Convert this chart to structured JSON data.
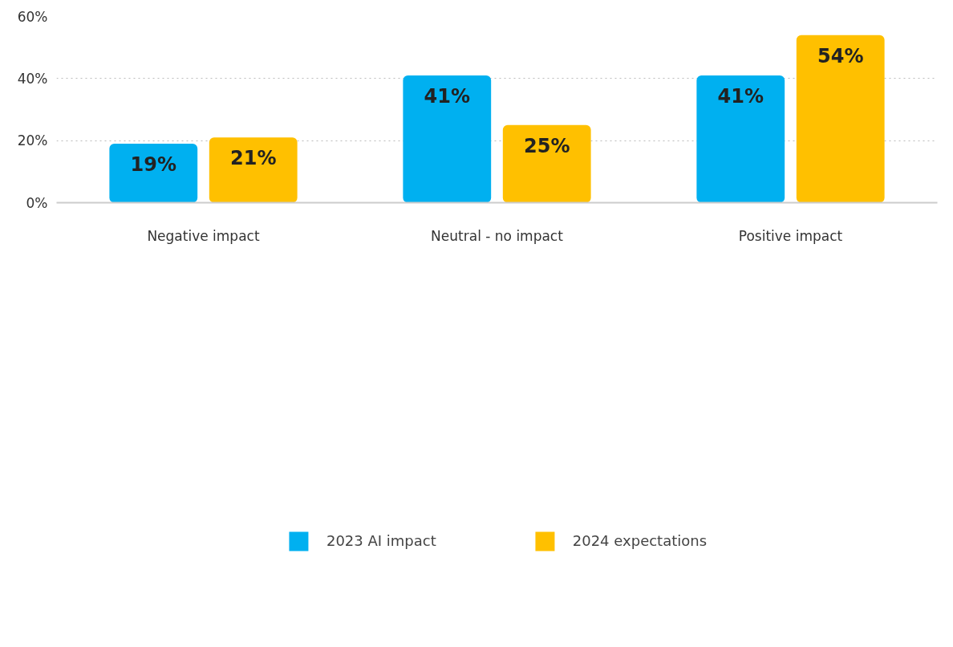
{
  "chart_data": {
    "type": "bar",
    "categories": [
      "Negative impact",
      "Neutral - no impact",
      "Positive impact"
    ],
    "series": [
      {
        "name": "2023 AI impact",
        "color": "#00b0f0",
        "values": [
          19,
          41,
          41
        ],
        "value_labels": [
          "19%",
          "41%",
          "41%"
        ]
      },
      {
        "name": "2024 expectations",
        "color": "#ffc000",
        "values": [
          21,
          25,
          54
        ],
        "value_labels": [
          "21%",
          "25%",
          "54%"
        ]
      }
    ],
    "ylim": [
      0,
      60
    ],
    "yticks": [
      {
        "value": 0,
        "label": "0%"
      },
      {
        "value": 20,
        "label": "20%"
      },
      {
        "value": 40,
        "label": "40%"
      },
      {
        "value": 60,
        "label": "60%"
      }
    ],
    "grid": "y",
    "legend": "bottom",
    "data_labels": true
  }
}
